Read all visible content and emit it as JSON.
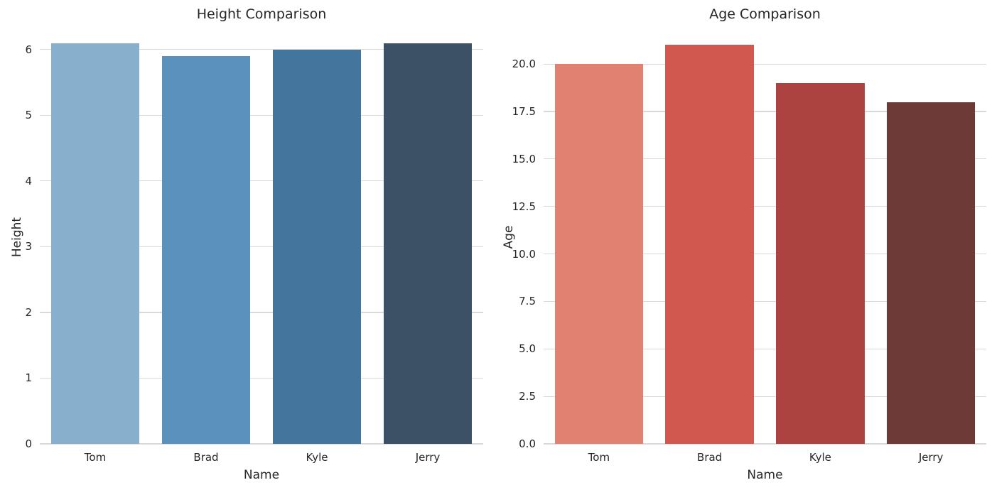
{
  "figure": {
    "background": "#ffffff",
    "grid_color": "#d9d9d9",
    "text_color": "#262626"
  },
  "chart_data": [
    {
      "type": "bar",
      "title": "Height Comparison",
      "xlabel": "Name",
      "ylabel": "Height",
      "categories": [
        "Tom",
        "Brad",
        "Kyle",
        "Jerry"
      ],
      "values": [
        6.1,
        5.9,
        6.0,
        6.1
      ],
      "bar_colors": [
        "#88afcc",
        "#5b92bd",
        "#44759c",
        "#3c5165"
      ],
      "palette": "Blues_d",
      "ylim": [
        0,
        6.3
      ],
      "yticks": [
        0,
        1,
        2,
        3,
        4,
        5,
        6
      ],
      "ytick_labels": [
        "0",
        "1",
        "2",
        "3",
        "4",
        "5",
        "6"
      ],
      "bar_width_fraction": 0.8,
      "grid": true,
      "legend": false
    },
    {
      "type": "bar",
      "title": "Age Comparison",
      "xlabel": "Name",
      "ylabel": "Age",
      "categories": [
        "Tom",
        "Brad",
        "Kyle",
        "Jerry"
      ],
      "values": [
        20,
        21,
        19,
        18
      ],
      "bar_colors": [
        "#e08172",
        "#d0584e",
        "#ad4340",
        "#6e3a38"
      ],
      "palette": "Reds_d",
      "ylim": [
        0,
        21.8
      ],
      "yticks": [
        0,
        2.5,
        5,
        7.5,
        10,
        12.5,
        15,
        17.5,
        20
      ],
      "ytick_labels": [
        "0.0",
        "2.5",
        "5.0",
        "7.5",
        "10.0",
        "12.5",
        "15.0",
        "17.5",
        "20.0"
      ],
      "bar_width_fraction": 0.8,
      "grid": true,
      "legend": false
    }
  ]
}
